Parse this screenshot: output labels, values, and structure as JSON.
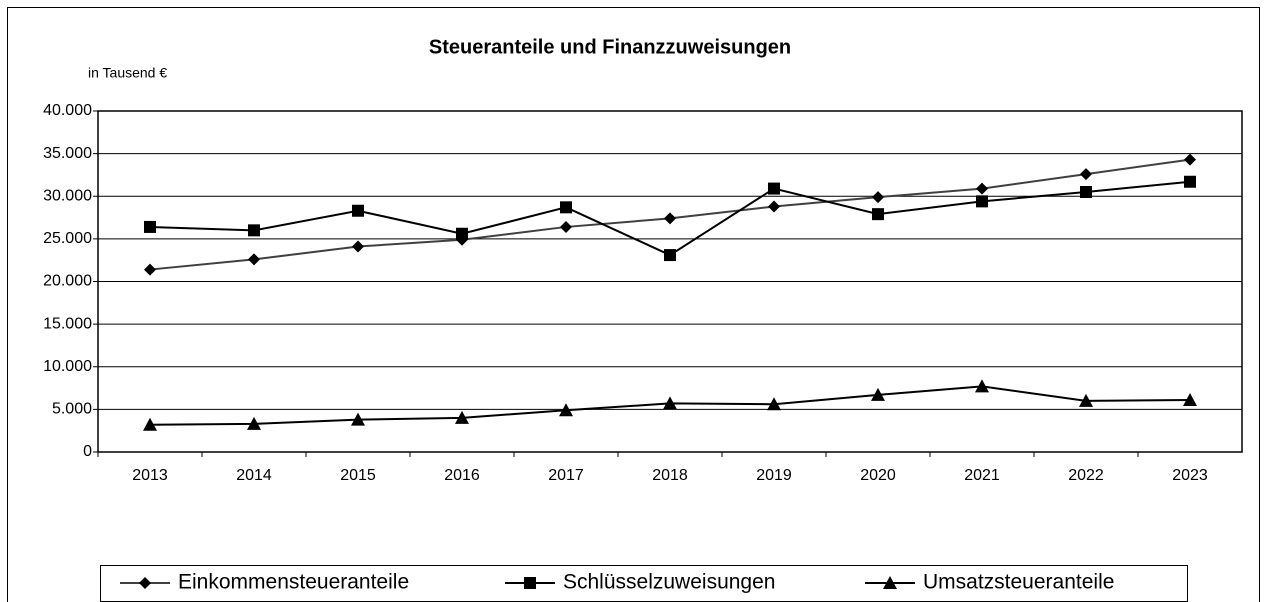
{
  "chart_data": {
    "type": "line",
    "title": "Steueranteile und Finanzzuweisungen",
    "y_axis_label": "in Tausend €",
    "categories": [
      "2013",
      "2014",
      "2015",
      "2016",
      "2017",
      "2018",
      "2019",
      "2020",
      "2021",
      "2022",
      "2023"
    ],
    "series": [
      {
        "name": "Einkommensteueranteile",
        "color": "#404040",
        "marker": "diamond",
        "values": [
          21400,
          22600,
          24100,
          24900,
          26400,
          27400,
          28800,
          29900,
          30900,
          32600,
          34300
        ]
      },
      {
        "name": "Schlüsselzuweisungen",
        "color": "#000000",
        "marker": "square",
        "values": [
          26400,
          26000,
          28300,
          25600,
          28700,
          23100,
          30900,
          27900,
          29400,
          30500,
          31700
        ]
      },
      {
        "name": "Umsatzsteueranteile",
        "color": "#000000",
        "marker": "triangle",
        "values": [
          3200,
          3300,
          3800,
          4000,
          4900,
          5700,
          5600,
          6700,
          7700,
          6000,
          6100
        ]
      }
    ],
    "ylim": [
      0,
      40000
    ],
    "yticks": [
      0,
      {
        "value": 5000,
        "label": "5.000"
      },
      {
        "value": 10000,
        "label": "10.000"
      },
      {
        "value": 15000,
        "label": "15.000"
      },
      {
        "value": 20000,
        "label": "20.000"
      },
      {
        "value": 25000,
        "label": "25.000"
      },
      {
        "value": 30000,
        "label": "30.000"
      },
      {
        "value": 35000,
        "label": "35.000"
      },
      {
        "value": 40000,
        "label": "40.000"
      }
    ],
    "grid": true,
    "legend": "bottom"
  }
}
